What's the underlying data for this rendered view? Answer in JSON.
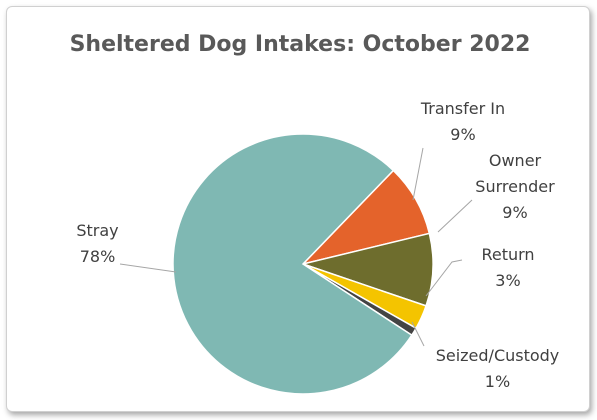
{
  "chart_data": {
    "type": "pie",
    "title": "Sheltered Dog Intakes: October 2022",
    "categories": [
      "Transfer In",
      "Owner Surrender",
      "Return",
      "Seized/Custody",
      "Stray"
    ],
    "values": [
      9,
      9,
      3,
      1,
      78
    ],
    "value_labels": [
      "9%",
      "9%",
      "3%",
      "1%",
      "78%"
    ],
    "colors": [
      "#e4632b",
      "#6e6d2d",
      "#f4c400",
      "#444444",
      "#7fb8b3"
    ]
  }
}
